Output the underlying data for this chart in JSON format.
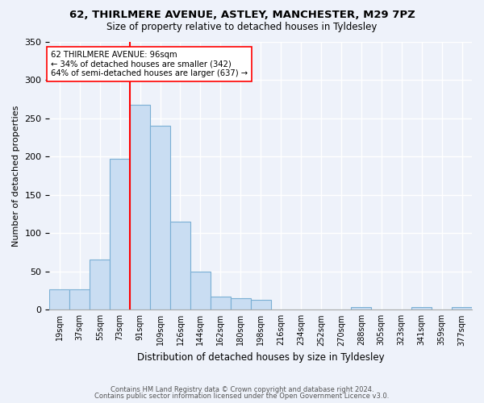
{
  "title1": "62, THIRLMERE AVENUE, ASTLEY, MANCHESTER, M29 7PZ",
  "title2": "Size of property relative to detached houses in Tyldesley",
  "xlabel": "Distribution of detached houses by size in Tyldesley",
  "ylabel": "Number of detached properties",
  "bar_color": "#c9ddf2",
  "bar_edge_color": "#7aafd4",
  "bin_labels": [
    "19sqm",
    "37sqm",
    "55sqm",
    "73sqm",
    "91sqm",
    "109sqm",
    "126sqm",
    "144sqm",
    "162sqm",
    "180sqm",
    "198sqm",
    "216sqm",
    "234sqm",
    "252sqm",
    "270sqm",
    "288sqm",
    "305sqm",
    "323sqm",
    "341sqm",
    "359sqm",
    "377sqm"
  ],
  "bar_heights": [
    27,
    27,
    65,
    197,
    267,
    240,
    115,
    50,
    17,
    15,
    13,
    0,
    0,
    0,
    0,
    3,
    0,
    0,
    4,
    0,
    3
  ],
  "annotation_line1": "62 THIRLMERE AVENUE: 96sqm",
  "annotation_line2": "← 34% of detached houses are smaller (342)",
  "annotation_line3": "64% of semi-detached houses are larger (637) →",
  "ylim": [
    0,
    350
  ],
  "yticks": [
    0,
    50,
    100,
    150,
    200,
    250,
    300,
    350
  ],
  "vline_bin": 4,
  "footer1": "Contains HM Land Registry data © Crown copyright and database right 2024.",
  "footer2": "Contains public sector information licensed under the Open Government Licence v3.0.",
  "bg_color": "#eef2fa",
  "grid_color": "#ffffff"
}
